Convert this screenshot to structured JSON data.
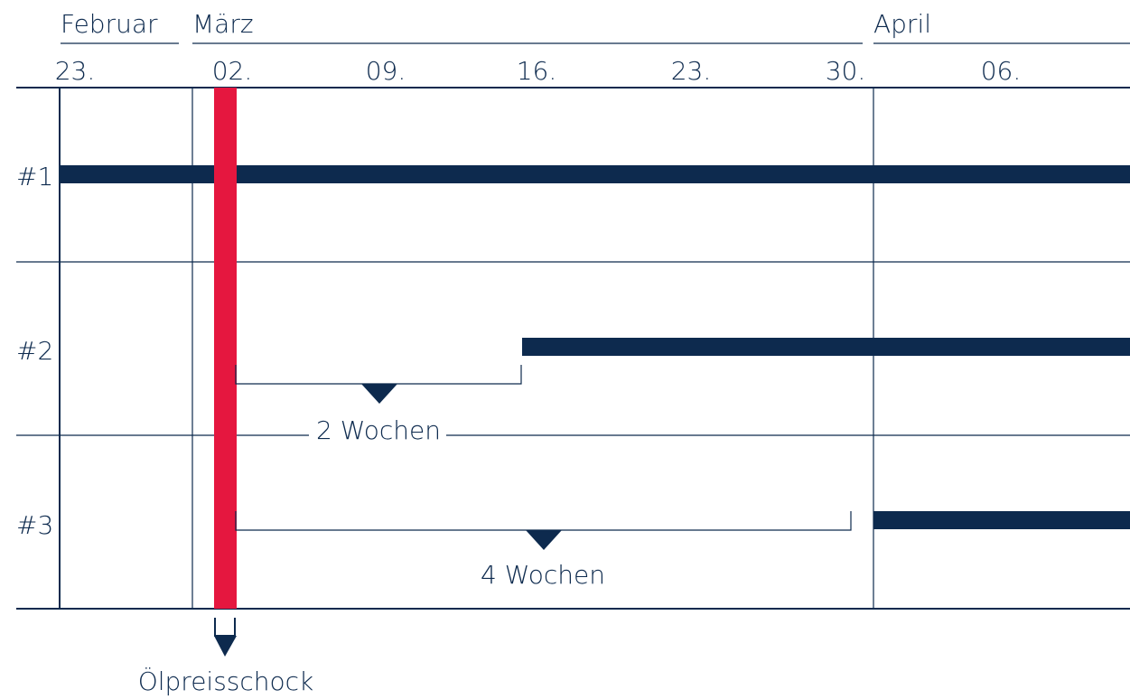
{
  "months": [
    "Februar",
    "März",
    "April"
  ],
  "weeks": [
    "23.",
    "02.",
    "09.",
    "16.",
    "23.",
    "30.",
    "06."
  ],
  "rows": [
    "#1",
    "#2",
    "#3"
  ],
  "annotations": {
    "gap_short": "2 Wochen",
    "gap_long": "4 Wochen",
    "event": "Ölpreisschock"
  }
}
